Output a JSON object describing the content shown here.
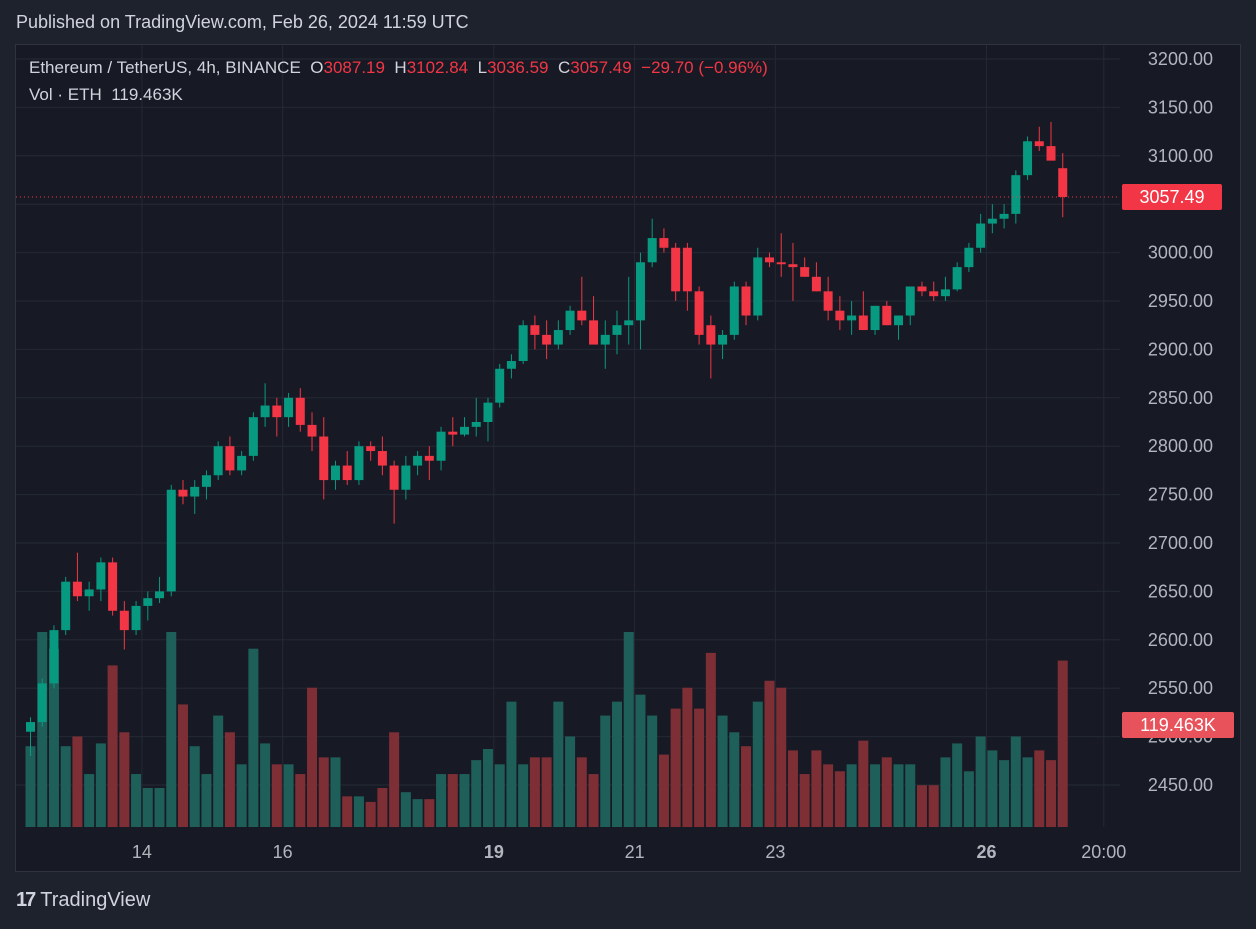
{
  "header": {
    "published": "Published on TradingView.com, Feb 26, 2024 11:59 UTC"
  },
  "legend": {
    "symbol": "Ethereum / TetherUS, 4h, BINANCE",
    "open_label": "O",
    "open": "3087.19",
    "high_label": "H",
    "high": "3102.84",
    "low_label": "L",
    "low": "3036.59",
    "close_label": "C",
    "close": "3057.49",
    "change": "−29.70 (−0.96%)",
    "vol_label": "Vol · ETH",
    "vol": "119.463K"
  },
  "footer": {
    "logo": "17",
    "brand": "TradingView"
  },
  "colors": {
    "up": "#089981",
    "down": "#f23645",
    "vol_up": "#1f5f5a",
    "vol_down": "#7e2f35",
    "bg": "#171a24",
    "grid": "#252935"
  },
  "chart_data": {
    "type": "candlestick",
    "price_badge": "3057.49",
    "volume_badge": "119.463K",
    "y_ticks": [
      "3200.00",
      "3150.00",
      "3100.00",
      "3050.00",
      "3000.00",
      "2950.00",
      "2900.00",
      "2850.00",
      "2800.00",
      "2750.00",
      "2700.00",
      "2650.00",
      "2600.00",
      "2550.00",
      "2500.00",
      "2450.00"
    ],
    "y_tick_values": [
      3200,
      3150,
      3100,
      3050,
      3000,
      2950,
      2900,
      2850,
      2800,
      2750,
      2700,
      2650,
      2600,
      2550,
      2500,
      2450
    ],
    "x_ticks": [
      {
        "label": "14",
        "index": 9.5,
        "bold": false
      },
      {
        "label": "16",
        "index": 21.5,
        "bold": false
      },
      {
        "label": "19",
        "index": 39.5,
        "bold": true
      },
      {
        "label": "21",
        "index": 51.5,
        "bold": false
      },
      {
        "label": "23",
        "index": 63.5,
        "bold": false
      },
      {
        "label": "26",
        "index": 81.5,
        "bold": true
      },
      {
        "label": "20:00",
        "index": 91.5,
        "bold": false
      }
    ],
    "ylim": [
      2405,
      3230
    ],
    "candles": [
      [
        2505,
        2520,
        2480,
        2515,
        58
      ],
      [
        2515,
        2560,
        2510,
        2555,
        140
      ],
      [
        2555,
        2615,
        2550,
        2610,
        128
      ],
      [
        2610,
        2665,
        2605,
        2660,
        58
      ],
      [
        2660,
        2690,
        2640,
        2645,
        65
      ],
      [
        2645,
        2660,
        2630,
        2652,
        38
      ],
      [
        2652,
        2685,
        2640,
        2680,
        60
      ],
      [
        2680,
        2685,
        2625,
        2630,
        116
      ],
      [
        2630,
        2640,
        2590,
        2610,
        68
      ],
      [
        2610,
        2640,
        2605,
        2635,
        38
      ],
      [
        2635,
        2650,
        2620,
        2643,
        28
      ],
      [
        2643,
        2665,
        2638,
        2650,
        28
      ],
      [
        2650,
        2760,
        2645,
        2755,
        140
      ],
      [
        2755,
        2765,
        2740,
        2748,
        88
      ],
      [
        2748,
        2765,
        2730,
        2758,
        58
      ],
      [
        2758,
        2775,
        2745,
        2770,
        38
      ],
      [
        2770,
        2805,
        2765,
        2800,
        80
      ],
      [
        2800,
        2810,
        2770,
        2775,
        68
      ],
      [
        2775,
        2795,
        2770,
        2790,
        45
      ],
      [
        2790,
        2835,
        2785,
        2830,
        128
      ],
      [
        2830,
        2865,
        2820,
        2842,
        60
      ],
      [
        2842,
        2850,
        2810,
        2830,
        45
      ],
      [
        2830,
        2855,
        2820,
        2850,
        45
      ],
      [
        2850,
        2860,
        2815,
        2822,
        38
      ],
      [
        2822,
        2835,
        2795,
        2810,
        100
      ],
      [
        2810,
        2830,
        2745,
        2765,
        50
      ],
      [
        2765,
        2785,
        2755,
        2780,
        50
      ],
      [
        2780,
        2795,
        2760,
        2765,
        22
      ],
      [
        2765,
        2805,
        2760,
        2800,
        22
      ],
      [
        2800,
        2805,
        2785,
        2795,
        18
      ],
      [
        2795,
        2810,
        2770,
        2780,
        28
      ],
      [
        2780,
        2785,
        2720,
        2755,
        68
      ],
      [
        2755,
        2790,
        2745,
        2780,
        25
      ],
      [
        2780,
        2795,
        2770,
        2790,
        20
      ],
      [
        2790,
        2800,
        2765,
        2785,
        20
      ],
      [
        2785,
        2820,
        2775,
        2815,
        38
      ],
      [
        2815,
        2830,
        2800,
        2812,
        38
      ],
      [
        2812,
        2830,
        2810,
        2820,
        38
      ],
      [
        2820,
        2850,
        2810,
        2825,
        48
      ],
      [
        2825,
        2850,
        2805,
        2845,
        56
      ],
      [
        2845,
        2885,
        2840,
        2880,
        45
      ],
      [
        2880,
        2895,
        2870,
        2888,
        90
      ],
      [
        2888,
        2930,
        2885,
        2925,
        45
      ],
      [
        2925,
        2935,
        2900,
        2915,
        50
      ],
      [
        2915,
        2930,
        2890,
        2905,
        50
      ],
      [
        2905,
        2930,
        2900,
        2920,
        90
      ],
      [
        2920,
        2945,
        2915,
        2940,
        65
      ],
      [
        2940,
        2975,
        2925,
        2930,
        50
      ],
      [
        2930,
        2955,
        2905,
        2905,
        38
      ],
      [
        2905,
        2930,
        2880,
        2915,
        80
      ],
      [
        2915,
        2940,
        2895,
        2925,
        90
      ],
      [
        2925,
        2975,
        2905,
        2930,
        140
      ],
      [
        2930,
        3000,
        2900,
        2990,
        95
      ],
      [
        2990,
        3035,
        2985,
        3015,
        80
      ],
      [
        3015,
        3025,
        3000,
        3005,
        52
      ],
      [
        3005,
        3010,
        2950,
        2960,
        85
      ],
      [
        3005,
        3010,
        2940,
        2960,
        100
      ],
      [
        2960,
        2965,
        2905,
        2915,
        85
      ],
      [
        2925,
        2935,
        2870,
        2905,
        125
      ],
      [
        2905,
        2920,
        2890,
        2915,
        80
      ],
      [
        2915,
        2970,
        2910,
        2965,
        68
      ],
      [
        2965,
        2970,
        2925,
        2935,
        58
      ],
      [
        2935,
        3005,
        2930,
        2995,
        90
      ],
      [
        2995,
        3000,
        2985,
        2990,
        105
      ],
      [
        2990,
        3020,
        2975,
        2988,
        100
      ],
      [
        2988,
        3010,
        2950,
        2985,
        55
      ],
      [
        2985,
        2995,
        2975,
        2975,
        38
      ],
      [
        2975,
        2990,
        2960,
        2960,
        55
      ],
      [
        2960,
        2975,
        2930,
        2940,
        45
      ],
      [
        2940,
        2955,
        2920,
        2930,
        40
      ],
      [
        2930,
        2950,
        2915,
        2935,
        45
      ],
      [
        2935,
        2960,
        2920,
        2920,
        62
      ],
      [
        2920,
        2945,
        2915,
        2945,
        45
      ],
      [
        2945,
        2950,
        2925,
        2925,
        50
      ],
      [
        2925,
        2935,
        2910,
        2935,
        45
      ],
      [
        2935,
        2965,
        2925,
        2965,
        45
      ],
      [
        2965,
        2970,
        2955,
        2960,
        30
      ],
      [
        2960,
        2970,
        2950,
        2955,
        30
      ],
      [
        2955,
        2975,
        2950,
        2962,
        50
      ],
      [
        2962,
        2990,
        2960,
        2985,
        60
      ],
      [
        2985,
        3010,
        2980,
        3005,
        40
      ],
      [
        3005,
        3040,
        3000,
        3030,
        65
      ],
      [
        3030,
        3050,
        3020,
        3035,
        55
      ],
      [
        3035,
        3050,
        3025,
        3040,
        48
      ],
      [
        3040,
        3085,
        3030,
        3080,
        65
      ],
      [
        3080,
        3120,
        3075,
        3115,
        50
      ],
      [
        3115,
        3130,
        3105,
        3110,
        55
      ],
      [
        3110,
        3135,
        3100,
        3095,
        48
      ],
      [
        3087.19,
        3102.84,
        3036.59,
        3057.49,
        119.463
      ]
    ]
  }
}
